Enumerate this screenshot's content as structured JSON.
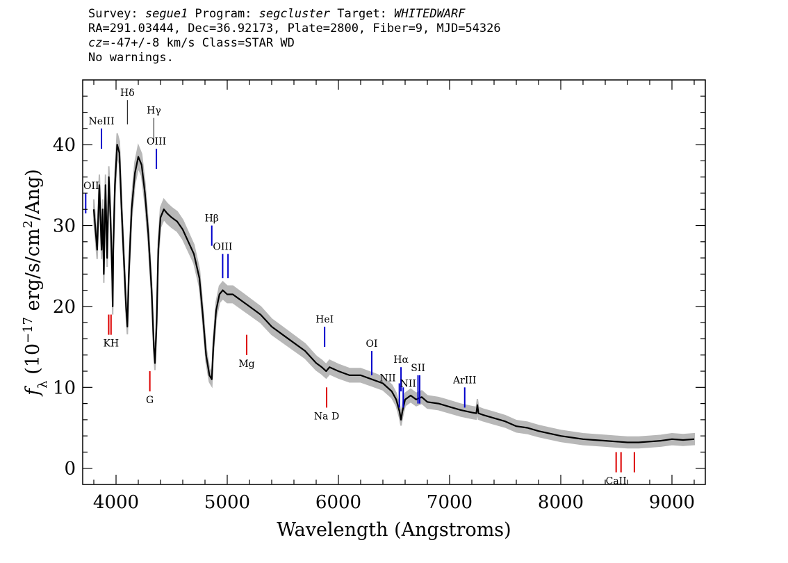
{
  "header": {
    "line1": {
      "survey_label": "Survey: ",
      "survey": "segue1",
      "program_label": " Program: ",
      "program": "segcluster",
      "target_label": " Target: ",
      "target": "WHITEDWARF"
    },
    "line2": "RA=291.03444, Dec=36.92173, Plate=2800, Fiber=9, MJD=54326",
    "line3": {
      "cz_label": "cz",
      "cz_value": "=-47+/-8",
      "cz_rest": " km/s Class=STAR WD"
    },
    "line4": "No warnings."
  },
  "chart_data": {
    "type": "line",
    "xlabel": "Wavelength (Angstroms)",
    "ylabel": "f_λ (10^-17 erg/s/cm^2/Ang)",
    "ylabel_parts": {
      "f": "f",
      "sub": "λ",
      "a": " (10",
      "exp1": "−17",
      "b": " erg/s/cm",
      "exp2": "2",
      "c": "/Ang)"
    },
    "xlim": [
      3700,
      9300
    ],
    "ylim": [
      -2,
      48
    ],
    "xticks": [
      4000,
      5000,
      6000,
      7000,
      8000,
      9000
    ],
    "xtick_labels": [
      "4000",
      "5000",
      "6000",
      "7000",
      "8000",
      "9000"
    ],
    "yticks": [
      0,
      10,
      20,
      30,
      40
    ],
    "ytick_labels": [
      "0",
      "10",
      "20",
      "30",
      "40"
    ],
    "colors": {
      "spectrum": "#000000",
      "error": "#b8b8b8",
      "emission": "#0000cc",
      "absorption": "#dd0000",
      "balmer": "#000000"
    },
    "series": [
      {
        "x": [
          3800,
          3830,
          3850,
          3870,
          3880,
          3890,
          3905,
          3920,
          3935,
          3950,
          3965,
          3970,
          3975,
          3990,
          4010,
          4030,
          4050,
          4070,
          4090,
          4102,
          4115,
          4140,
          4170,
          4200,
          4230,
          4260,
          4290,
          4320,
          4340,
          4350,
          4365,
          4380,
          4400,
          4430,
          4460,
          4500,
          4550,
          4600,
          4650,
          4700,
          4750,
          4780,
          4810,
          4840,
          4861,
          4875,
          4900,
          4930,
          4960,
          5000,
          5050,
          5100,
          5150,
          5200,
          5300,
          5400,
          5500,
          5600,
          5700,
          5800,
          5850,
          5890,
          5920,
          6000,
          6100,
          6200,
          6300,
          6400,
          6480,
          6520,
          6550,
          6563,
          6575,
          6600,
          6650,
          6700,
          6750,
          6800,
          6900,
          7000,
          7100,
          7200,
          7240,
          7250,
          7260,
          7300,
          7400,
          7500,
          7600,
          7700,
          7800,
          7900,
          8000,
          8100,
          8200,
          8300,
          8400,
          8500,
          8600,
          8700,
          8800,
          8900,
          9000,
          9100,
          9200
        ],
        "y": [
          32,
          27,
          35,
          27,
          32,
          24,
          35,
          26,
          36,
          31,
          24,
          20,
          27,
          35,
          40,
          39,
          32,
          26,
          20,
          17.5,
          24,
          32,
          36.5,
          38.5,
          37.5,
          34,
          29,
          22,
          15,
          13,
          18,
          27,
          31,
          32,
          31.5,
          31,
          30.5,
          29.5,
          28,
          26.5,
          23.5,
          19,
          14,
          11.5,
          11,
          15,
          19.5,
          21.5,
          22,
          21.5,
          21.5,
          21,
          20.5,
          20,
          19,
          17.5,
          16.5,
          15.5,
          14.5,
          13,
          12.5,
          12,
          12.5,
          12,
          11.5,
          11.5,
          11,
          10.5,
          9.5,
          8.5,
          7,
          6,
          7,
          8.5,
          9,
          8.5,
          8.8,
          8.2,
          8,
          7.6,
          7.2,
          6.9,
          6.8,
          7.8,
          6.8,
          6.6,
          6.2,
          5.8,
          5.2,
          5,
          4.6,
          4.3,
          4,
          3.8,
          3.6,
          3.5,
          3.4,
          3.3,
          3.2,
          3.2,
          3.3,
          3.4,
          3.6,
          3.5,
          3.6
        ]
      }
    ],
    "lines": [
      {
        "label": "NeIII",
        "x": 3869,
        "y1": 39.5,
        "y2": 42,
        "color": "emission",
        "label_pos": "above"
      },
      {
        "label": "OII",
        "x": 3727,
        "y1": 31.5,
        "y2": 34,
        "color": "emission",
        "label_pos": "above"
      },
      {
        "label": "Hδ",
        "x": 4102,
        "y1": 42.5,
        "y2": 45.5,
        "color": "balmer",
        "label_pos": "above"
      },
      {
        "label": "Hγ",
        "x": 4340,
        "y1": 40.5,
        "y2": 43.3,
        "color": "balmer",
        "label_pos": "above"
      },
      {
        "label": "OIII",
        "x": 4363,
        "y1": 37,
        "y2": 39.5,
        "color": "emission",
        "label_pos": "above"
      },
      {
        "label": "Hβ",
        "x": 4861,
        "y1": 27.5,
        "y2": 30,
        "color": "emission",
        "label_pos": "above"
      },
      {
        "label": "OIII",
        "x": 4959,
        "y1": 23.5,
        "y2": 26.5,
        "color": "emission",
        "label_pos": "above"
      },
      {
        "label": "",
        "x": 5007,
        "y1": 23.5,
        "y2": 26.5,
        "color": "emission",
        "label_pos": "none"
      },
      {
        "label": "HeI",
        "x": 5876,
        "y1": 15,
        "y2": 17.5,
        "color": "emission",
        "label_pos": "above"
      },
      {
        "label": "OI",
        "x": 6300,
        "y1": 11.5,
        "y2": 14.5,
        "color": "emission",
        "label_pos": "above"
      },
      {
        "label": "NII",
        "x": 6548,
        "y1": 7.5,
        "y2": 10.5,
        "color": "emission",
        "label_pos": "left"
      },
      {
        "label": "Hα",
        "x": 6563,
        "y1": 9.5,
        "y2": 12.5,
        "color": "emission",
        "label_pos": "above"
      },
      {
        "label": "NII",
        "x": 6583,
        "y1": 7.5,
        "y2": 10,
        "color": "emission",
        "label_pos": "right"
      },
      {
        "label": "SII",
        "x": 6716,
        "y1": 8,
        "y2": 11.5,
        "color": "emission",
        "label_pos": "above"
      },
      {
        "label": "",
        "x": 6731,
        "y1": 8,
        "y2": 11.5,
        "color": "emission",
        "label_pos": "none"
      },
      {
        "label": "ArIII",
        "x": 7136,
        "y1": 7.5,
        "y2": 10,
        "color": "emission",
        "label_pos": "above"
      },
      {
        "label": "",
        "x": 3934,
        "y1": 16.5,
        "y2": 19,
        "color": "absorption",
        "label_pos": "none"
      },
      {
        "label": "KH",
        "x": 3955,
        "y1": 16.5,
        "y2": 19,
        "color": "absorption",
        "label_pos": "below"
      },
      {
        "label": "G",
        "x": 4304,
        "y1": 9.5,
        "y2": 12,
        "color": "absorption",
        "label_pos": "below"
      },
      {
        "label": "Mg",
        "x": 5175,
        "y1": 14,
        "y2": 16.5,
        "color": "absorption",
        "label_pos": "below"
      },
      {
        "label": "Na D",
        "x": 5894,
        "y1": 7.5,
        "y2": 10,
        "color": "absorption",
        "label_pos": "below"
      },
      {
        "label": "CaII",
        "x": 8498,
        "y1": -0.5,
        "y2": 2,
        "color": "absorption",
        "label_pos": "below"
      },
      {
        "label": "",
        "x": 8542,
        "y1": -0.5,
        "y2": 2,
        "color": "absorption",
        "label_pos": "none"
      },
      {
        "label": "",
        "x": 8662,
        "y1": -0.5,
        "y2": 2,
        "color": "absorption",
        "label_pos": "none"
      }
    ]
  }
}
